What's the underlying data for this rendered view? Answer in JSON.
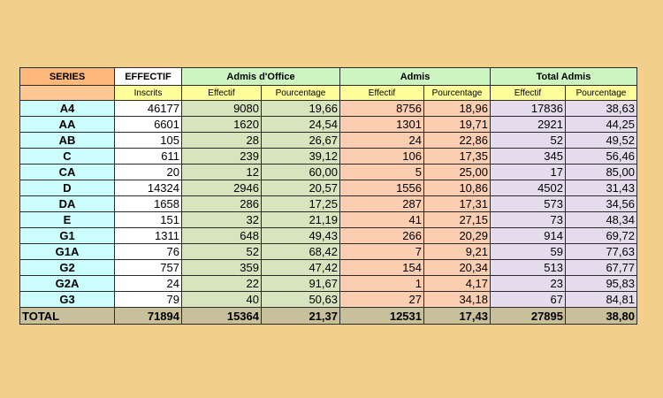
{
  "header": {
    "series": "SERIES",
    "effectif": "EFFECTIF",
    "admis_office": "Admis d'Office",
    "admis": "Admis",
    "total_admis": "Total Admis",
    "inscrits": "Inscrits",
    "effectif_sub": "Effectif",
    "pourcentage_sub": "Pourcentage"
  },
  "rows": [
    {
      "series": "A4",
      "inscrits": "46177",
      "office_eff": "9080",
      "office_pct": "19,66",
      "admis_eff": "8756",
      "admis_pct": "18,96",
      "total_eff": "17836",
      "total_pct": "38,63"
    },
    {
      "series": "AA",
      "inscrits": "6601",
      "office_eff": "1620",
      "office_pct": "24,54",
      "admis_eff": "1301",
      "admis_pct": "19,71",
      "total_eff": "2921",
      "total_pct": "44,25"
    },
    {
      "series": "AB",
      "inscrits": "105",
      "office_eff": "28",
      "office_pct": "26,67",
      "admis_eff": "24",
      "admis_pct": "22,86",
      "total_eff": "52",
      "total_pct": "49,52"
    },
    {
      "series": "C",
      "inscrits": "611",
      "office_eff": "239",
      "office_pct": "39,12",
      "admis_eff": "106",
      "admis_pct": "17,35",
      "total_eff": "345",
      "total_pct": "56,46"
    },
    {
      "series": "CA",
      "inscrits": "20",
      "office_eff": "12",
      "office_pct": "60,00",
      "admis_eff": "5",
      "admis_pct": "25,00",
      "total_eff": "17",
      "total_pct": "85,00"
    },
    {
      "series": "D",
      "inscrits": "14324",
      "office_eff": "2946",
      "office_pct": "20,57",
      "admis_eff": "1556",
      "admis_pct": "10,86",
      "total_eff": "4502",
      "total_pct": "31,43"
    },
    {
      "series": "DA",
      "inscrits": "1658",
      "office_eff": "286",
      "office_pct": "17,25",
      "admis_eff": "287",
      "admis_pct": "17,31",
      "total_eff": "573",
      "total_pct": "34,56"
    },
    {
      "series": "E",
      "inscrits": "151",
      "office_eff": "32",
      "office_pct": "21,19",
      "admis_eff": "41",
      "admis_pct": "27,15",
      "total_eff": "73",
      "total_pct": "48,34"
    },
    {
      "series": "G1",
      "inscrits": "1311",
      "office_eff": "648",
      "office_pct": "49,43",
      "admis_eff": "266",
      "admis_pct": "20,29",
      "total_eff": "914",
      "total_pct": "69,72"
    },
    {
      "series": "G1A",
      "inscrits": "76",
      "office_eff": "52",
      "office_pct": "68,42",
      "admis_eff": "7",
      "admis_pct": "9,21",
      "total_eff": "59",
      "total_pct": "77,63"
    },
    {
      "series": "G2",
      "inscrits": "757",
      "office_eff": "359",
      "office_pct": "47,42",
      "admis_eff": "154",
      "admis_pct": "20,34",
      "total_eff": "513",
      "total_pct": "67,77"
    },
    {
      "series": "G2A",
      "inscrits": "24",
      "office_eff": "22",
      "office_pct": "91,67",
      "admis_eff": "1",
      "admis_pct": "4,17",
      "total_eff": "23",
      "total_pct": "95,83"
    },
    {
      "series": "G3",
      "inscrits": "79",
      "office_eff": "40",
      "office_pct": "50,63",
      "admis_eff": "27",
      "admis_pct": "34,18",
      "total_eff": "67",
      "total_pct": "84,81"
    }
  ],
  "total": {
    "series": "TOTAL",
    "inscrits": "71894",
    "office_eff": "15364",
    "office_pct": "21,37",
    "admis_eff": "12531",
    "admis_pct": "17,43",
    "total_eff": "27895",
    "total_pct": "38,80"
  }
}
